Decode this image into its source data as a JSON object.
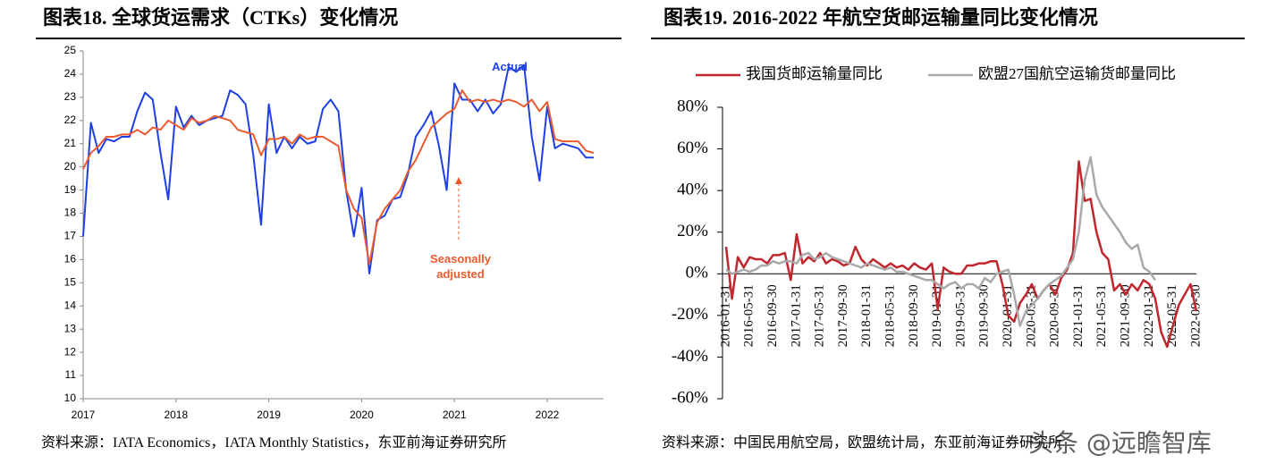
{
  "chart_data": [
    {
      "type": "line",
      "title": "图表18. 全球货运需求（CTKs）变化情况",
      "categories": [
        "2017",
        null,
        null,
        null,
        null,
        null,
        null,
        null,
        null,
        null,
        null,
        null,
        "2018",
        null,
        null,
        null,
        null,
        null,
        null,
        null,
        null,
        null,
        null,
        null,
        "2019",
        null,
        null,
        null,
        null,
        null,
        null,
        null,
        null,
        null,
        null,
        null,
        "2020",
        null,
        null,
        null,
        null,
        null,
        null,
        null,
        null,
        null,
        null,
        null,
        "2021",
        null,
        null,
        null,
        null,
        null,
        null,
        null,
        null,
        null,
        null,
        null,
        "2022",
        null,
        null,
        null,
        null,
        null,
        null
      ],
      "series": [
        {
          "name": "Actual",
          "color": "#1f3fe6",
          "values": [
            17.0,
            21.9,
            20.6,
            21.2,
            21.1,
            21.3,
            21.3,
            22.4,
            23.2,
            22.9,
            20.6,
            18.6,
            22.6,
            21.7,
            22.2,
            21.8,
            22.0,
            22.1,
            22.2,
            23.3,
            23.1,
            22.7,
            20.5,
            17.5,
            22.7,
            20.6,
            21.3,
            20.8,
            21.3,
            21.0,
            21.1,
            22.5,
            22.9,
            22.4,
            19.0,
            17.0,
            19.1,
            15.4,
            17.7,
            17.9,
            18.6,
            18.7,
            19.7,
            21.3,
            21.8,
            22.4,
            20.9,
            19.0,
            23.6,
            22.9,
            22.9,
            22.4,
            22.9,
            22.3,
            22.7,
            24.3,
            24.1,
            24.4,
            21.3,
            19.4,
            22.6,
            20.8,
            21.0,
            20.9,
            20.8,
            20.4,
            20.4
          ]
        },
        {
          "name": "Seasonally adjusted",
          "color": "#ec5a2e",
          "values": [
            19.9,
            20.6,
            20.9,
            21.3,
            21.3,
            21.4,
            21.4,
            21.6,
            21.4,
            21.7,
            21.6,
            22.0,
            21.8,
            21.6,
            22.1,
            21.9,
            22.0,
            22.2,
            22.1,
            22.0,
            21.6,
            21.5,
            21.4,
            20.5,
            21.2,
            21.2,
            21.3,
            21.0,
            21.4,
            21.2,
            21.3,
            21.3,
            21.1,
            20.9,
            19.0,
            18.2,
            17.8,
            15.8,
            17.6,
            18.2,
            18.6,
            19.0,
            19.8,
            20.3,
            21.0,
            21.7,
            22.0,
            22.3,
            22.5,
            23.3,
            22.8,
            22.9,
            22.8,
            22.9,
            22.8,
            22.9,
            22.8,
            22.6,
            22.9,
            22.4,
            22.8,
            21.2,
            21.1,
            21.1,
            21.1,
            20.7,
            20.6
          ]
        }
      ],
      "ylim": [
        10,
        25
      ],
      "yticks": [
        10,
        11,
        12,
        13,
        14,
        15,
        16,
        17,
        18,
        19,
        20,
        21,
        22,
        23,
        24,
        25
      ],
      "annotations": [
        {
          "text": "Actual"
        },
        {
          "text": "Seasonally adjusted"
        }
      ],
      "source": "资料来源：IATA Economics，IATA Monthly Statistics，东亚前海证券研究所"
    },
    {
      "type": "line",
      "title": "图表19. 2016-2022 年航空货邮运输量同比变化情况",
      "categories": [
        "2016-01-31",
        null,
        null,
        null,
        "2016-05-31",
        null,
        null,
        null,
        "2016-09-30",
        null,
        null,
        null,
        "2017-01-31",
        null,
        null,
        null,
        "2017-05-31",
        null,
        null,
        null,
        "2017-09-30",
        null,
        null,
        null,
        "2018-01-31",
        null,
        null,
        null,
        "2018-05-31",
        null,
        null,
        null,
        "2018-09-30",
        null,
        null,
        null,
        "2019-01-31",
        null,
        null,
        null,
        "2019-05-31",
        null,
        null,
        null,
        "2019-09-30",
        null,
        null,
        null,
        "2020-01-31",
        null,
        null,
        null,
        "2020-05-31",
        null,
        null,
        null,
        "2020-09-30",
        null,
        null,
        null,
        "2021-01-31",
        null,
        null,
        null,
        "2021-05-31",
        null,
        null,
        null,
        "2021-09-30",
        null,
        null,
        null,
        "2022-01-31",
        null,
        null,
        null,
        "2022-05-31",
        null,
        null,
        null,
        "2022-09-30"
      ],
      "series": [
        {
          "name": "我国货邮运输量同比",
          "color": "#c0262d",
          "values": [
            13,
            -12,
            8,
            3,
            8,
            7,
            7,
            5,
            9,
            9,
            10,
            -3,
            19,
            5,
            8,
            6,
            10,
            5,
            7,
            6,
            4,
            5,
            13,
            7,
            4,
            7,
            5,
            3,
            5,
            3,
            4,
            2,
            5,
            3,
            2,
            5,
            -17,
            3,
            1,
            0,
            0,
            4,
            4,
            5,
            5,
            6,
            6,
            -5,
            -20,
            -23,
            -14,
            -10,
            -5,
            -12,
            -8,
            -5,
            -10,
            -2,
            2,
            10,
            54,
            35,
            36,
            20,
            10,
            7,
            -8,
            -5,
            -10,
            -5,
            -8,
            -3,
            -5,
            -12,
            -28,
            -35,
            -25,
            -15,
            -10,
            -5,
            -18
          ]
        },
        {
          "name": "欧盟27国航空运输货邮量同比",
          "color": "#a9a9a9",
          "values": [
            2,
            0,
            1,
            2,
            1,
            2,
            4,
            4,
            6,
            5,
            6,
            6,
            5,
            9,
            10,
            7,
            8,
            10,
            8,
            7,
            6,
            5,
            4,
            3,
            5,
            4,
            3,
            2,
            3,
            1,
            1,
            0,
            -1,
            -2,
            -3,
            -3,
            -5,
            -7,
            -5,
            -4,
            -7,
            -5,
            -5,
            -7,
            -2,
            -4,
            0,
            1,
            2,
            -10,
            -25,
            -18,
            -15,
            -12,
            -8,
            -5,
            -3,
            -1,
            3,
            7,
            20,
            45,
            56,
            38,
            32,
            28,
            24,
            20,
            15,
            12,
            14,
            3,
            1,
            -3,
            null,
            null,
            null,
            null,
            null,
            null,
            null
          ]
        }
      ],
      "ylim": [
        -60,
        80
      ],
      "yticks": [
        {
          "value": -60,
          "label": "-60%"
        },
        {
          "value": -40,
          "label": "-40%"
        },
        {
          "value": -20,
          "label": "-20%"
        },
        {
          "value": 0,
          "label": "0%"
        },
        {
          "value": 20,
          "label": "20%"
        },
        {
          "value": 40,
          "label": "40%"
        },
        {
          "value": 60,
          "label": "60%"
        },
        {
          "value": 80,
          "label": "80%"
        }
      ],
      "legend": "top",
      "source": "资料来源：中国民用航空局，欧盟统计局，东亚前海证券研究所",
      "watermark": "头条 @远瞻智库"
    }
  ]
}
